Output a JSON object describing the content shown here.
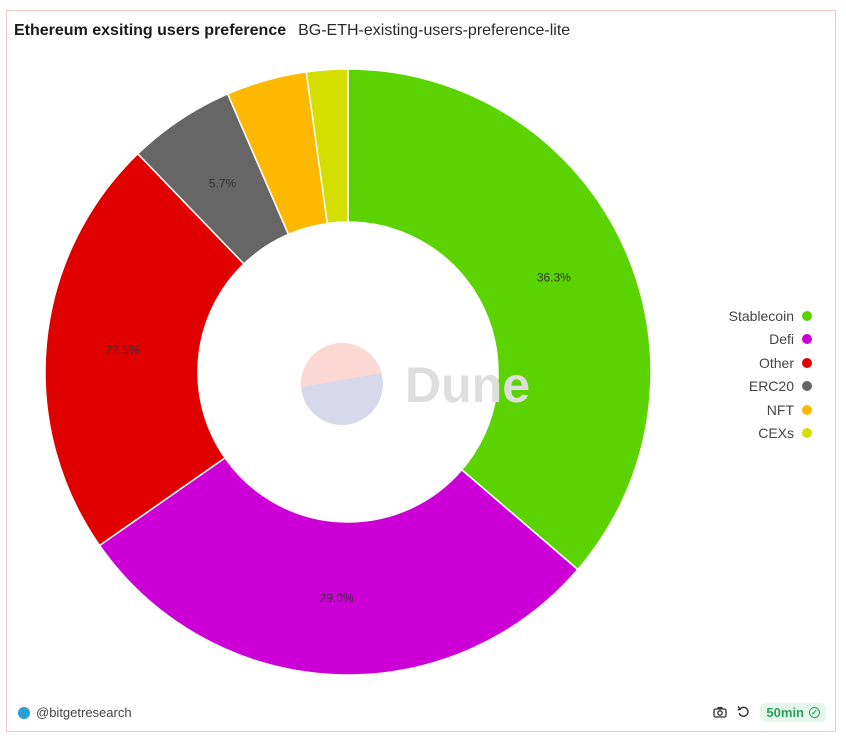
{
  "header": {
    "title": "Ethereum exsiting users preference",
    "subtitle": "BG-ETH-existing-users-preference-lite"
  },
  "watermark": "Dune",
  "footer": {
    "author": "@bitgetresearch",
    "refresh_badge": "50min",
    "icons": [
      "camera-icon",
      "refresh-icon",
      "check-circle-icon"
    ]
  },
  "chart_data": {
    "type": "pie",
    "donut": true,
    "categories": [
      "Stablecoin",
      "Defi",
      "Other",
      "ERC20",
      "NFT",
      "CEXs"
    ],
    "values": [
      36.3,
      29.0,
      22.5,
      5.7,
      4.3,
      2.2
    ],
    "colors": [
      "#5bd300",
      "#cc00d6",
      "#e00000",
      "#666666",
      "#ffb800",
      "#d4df00"
    ],
    "data_labels": [
      "36.3%",
      "29.0%",
      "22.5%",
      "5.7%",
      "",
      ""
    ],
    "legend_position": "right"
  }
}
